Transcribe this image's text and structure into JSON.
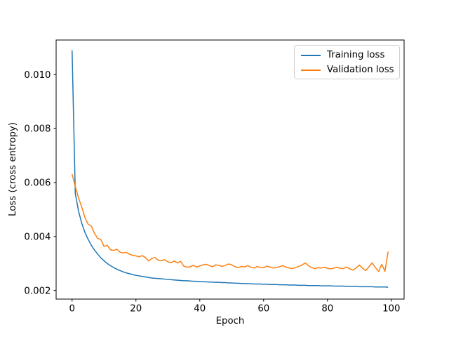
{
  "figure": {
    "background": "#ffffff"
  },
  "axes": {
    "xlabel": "Epoch",
    "ylabel": "Loss (cross entropy)",
    "x_ticks": [
      0,
      20,
      40,
      60,
      80,
      100
    ],
    "x_tick_labels": [
      "0",
      "20",
      "40",
      "60",
      "80",
      "100"
    ],
    "y_ticks": [
      0.002,
      0.004,
      0.006,
      0.008,
      0.01
    ],
    "y_tick_labels": [
      "0.002",
      "0.004",
      "0.006",
      "0.008",
      "0.010"
    ]
  },
  "legend": {
    "position": "upper right",
    "entries": [
      {
        "label": "Training loss",
        "color": "#1f77b4"
      },
      {
        "label": "Validation loss",
        "color": "#ff7f0e"
      }
    ]
  },
  "chart_data": {
    "type": "line",
    "title": "",
    "xlabel": "Epoch",
    "ylabel": "Loss (cross entropy)",
    "grid": false,
    "legend_position": "upper right",
    "xlim": [
      -5,
      104
    ],
    "ylim": [
      0.00168,
      0.01128
    ],
    "x": [
      0,
      1,
      2,
      3,
      4,
      5,
      6,
      7,
      8,
      9,
      10,
      11,
      12,
      13,
      14,
      15,
      16,
      17,
      18,
      19,
      20,
      21,
      22,
      23,
      24,
      25,
      26,
      27,
      28,
      29,
      30,
      31,
      32,
      33,
      34,
      35,
      36,
      37,
      38,
      39,
      40,
      41,
      42,
      43,
      44,
      45,
      46,
      47,
      48,
      49,
      50,
      51,
      52,
      53,
      54,
      55,
      56,
      57,
      58,
      59,
      60,
      61,
      62,
      63,
      64,
      65,
      66,
      67,
      68,
      69,
      70,
      71,
      72,
      73,
      74,
      75,
      76,
      77,
      78,
      79,
      80,
      81,
      82,
      83,
      84,
      85,
      86,
      87,
      88,
      89,
      90,
      91,
      92,
      93,
      94,
      95,
      96,
      97,
      98,
      99
    ],
    "series": [
      {
        "name": "Training loss",
        "color": "#1f77b4",
        "values": [
          0.0109,
          0.0056,
          0.00495,
          0.0045,
          0.00416,
          0.0039,
          0.00368,
          0.0035,
          0.00335,
          0.00321,
          0.0031,
          0.003,
          0.00292,
          0.00285,
          0.00279,
          0.00274,
          0.00269,
          0.00265,
          0.00262,
          0.00259,
          0.00256,
          0.00254,
          0.00252,
          0.0025,
          0.00248,
          0.00246,
          0.00245,
          0.00244,
          0.00243,
          0.00242,
          0.00241,
          0.0024,
          0.00239,
          0.00238,
          0.00237,
          0.00236,
          0.00236,
          0.00235,
          0.00234,
          0.00234,
          0.00233,
          0.00232,
          0.00232,
          0.00231,
          0.00231,
          0.0023,
          0.0023,
          0.00229,
          0.00229,
          0.00228,
          0.00228,
          0.00227,
          0.00227,
          0.00226,
          0.00226,
          0.00225,
          0.00225,
          0.00224,
          0.00224,
          0.00224,
          0.00223,
          0.00223,
          0.00222,
          0.00222,
          0.00222,
          0.00221,
          0.00221,
          0.00221,
          0.0022,
          0.0022,
          0.0022,
          0.00219,
          0.00219,
          0.00219,
          0.00218,
          0.00218,
          0.00218,
          0.00218,
          0.00217,
          0.00217,
          0.00217,
          0.00217,
          0.00216,
          0.00216,
          0.00216,
          0.00216,
          0.00215,
          0.00215,
          0.00215,
          0.00215,
          0.00214,
          0.00214,
          0.00214,
          0.00214,
          0.00214,
          0.00213,
          0.00213,
          0.00213,
          0.00213,
          0.00212
        ]
      },
      {
        "name": "Validation loss",
        "color": "#ff7f0e",
        "values": [
          0.00631,
          0.00585,
          0.00544,
          0.0051,
          0.00471,
          0.00446,
          0.00439,
          0.00412,
          0.00393,
          0.00389,
          0.00363,
          0.00368,
          0.00351,
          0.00348,
          0.00353,
          0.00342,
          0.00339,
          0.00341,
          0.00334,
          0.0033,
          0.00328,
          0.00325,
          0.00329,
          0.00322,
          0.00309,
          0.00319,
          0.00322,
          0.00312,
          0.0031,
          0.00314,
          0.00306,
          0.00303,
          0.00309,
          0.00302,
          0.00308,
          0.0029,
          0.00286,
          0.00288,
          0.00293,
          0.00287,
          0.00291,
          0.00295,
          0.00297,
          0.00292,
          0.00288,
          0.00295,
          0.00293,
          0.00289,
          0.00293,
          0.00298,
          0.00295,
          0.00288,
          0.00285,
          0.00289,
          0.00287,
          0.00292,
          0.00286,
          0.00283,
          0.00289,
          0.00285,
          0.00284,
          0.0029,
          0.00287,
          0.00283,
          0.00285,
          0.00288,
          0.00292,
          0.00286,
          0.00283,
          0.00281,
          0.00285,
          0.00289,
          0.00294,
          0.00302,
          0.00292,
          0.00285,
          0.00281,
          0.00284,
          0.00283,
          0.00286,
          0.00282,
          0.0028,
          0.00283,
          0.00286,
          0.00282,
          0.00281,
          0.00287,
          0.0028,
          0.00275,
          0.00284,
          0.00294,
          0.00282,
          0.00274,
          0.00288,
          0.00302,
          0.00285,
          0.0027,
          0.00297,
          0.00271,
          0.00344
        ]
      }
    ]
  }
}
